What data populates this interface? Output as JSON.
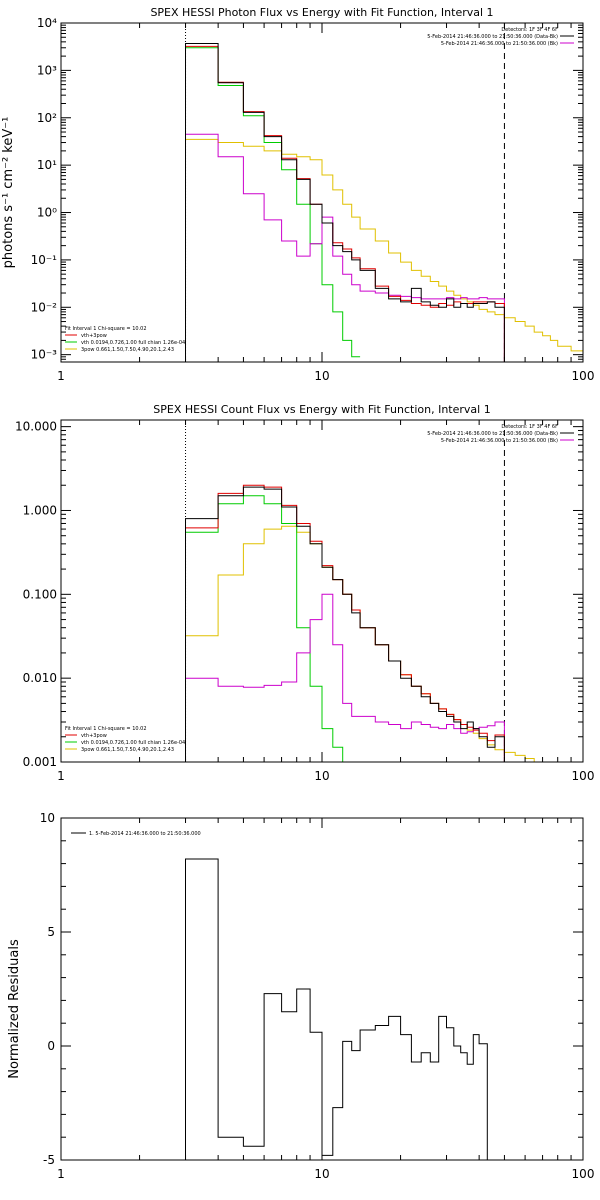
{
  "colors": {
    "data": "#000000",
    "total_fit": "#e00000",
    "thermal": "#00cc00",
    "powerlaw": "#e0c000",
    "background": "#cc00cc",
    "axes": "#000000"
  },
  "chart_data": [
    {
      "type": "line",
      "title": "SPEX HESSI Photon Flux vs Energy with Fit Function, Interval 1",
      "xlabel": "",
      "ylabel": "photons s⁻¹ cm⁻² keV⁻¹",
      "xscale": "log",
      "yscale": "log",
      "xlim": [
        1,
        100
      ],
      "ylim": [
        0.0007,
        10000
      ],
      "x_ticks": [
        "1",
        "10",
        "100"
      ],
      "y_ticks": [
        "10⁻³",
        "10⁻²",
        "10⁻¹",
        "10⁰",
        "10¹",
        "10²",
        "10³",
        "10⁴"
      ],
      "detectors_label": "Detectors: 1F 3F 4F 6F",
      "legend_right": [
        {
          "text": "5-Feb-2014 21:46:36.000 to 21:50:36.000 (Data-Bk)",
          "color": "#000000"
        },
        {
          "text": "5-Feb-2014 21:46:36.000 to 21:50:36.000 (Bk)",
          "color": "#cc00cc"
        }
      ],
      "legend_left": [
        {
          "text": "Fit Interval 1   Chi-square = 10.02",
          "color": "#000000"
        },
        {
          "text": "vth+3pow",
          "color": "#e00000"
        },
        {
          "text": "vth 0.0194,0.726,1.00  full chian 1.26e-04",
          "color": "#00cc00"
        },
        {
          "text": "3pow 0.661,1.50,7.50,4.90,20.1,2.43",
          "color": "#e0c000"
        }
      ],
      "edges": [
        3,
        4,
        5,
        6,
        7,
        8,
        9,
        10,
        11,
        12,
        13,
        14,
        16,
        18,
        20,
        22,
        24,
        26,
        28,
        30,
        32,
        34,
        36,
        38,
        40,
        43,
        46,
        50,
        55,
        60,
        65,
        70,
        75,
        80,
        90,
        100
      ],
      "series": [
        {
          "key": "data",
          "values": [
            3700,
            550,
            130,
            40,
            13,
            5,
            1.5,
            0.6,
            0.2,
            0.15,
            0.1,
            0.06,
            0.025,
            0.015,
            0.013,
            0.025,
            0.013,
            0.011,
            0.01,
            0.015,
            0.01,
            0.012,
            0.01,
            0.012,
            0.012,
            0.013,
            0.01,
            0.015
          ],
          "x_end": 50
        },
        {
          "key": "total_fit",
          "values": [
            3200,
            560,
            135,
            42,
            14,
            5.2,
            1.5,
            0.6,
            0.23,
            0.17,
            0.11,
            0.065,
            0.028,
            0.017,
            0.014,
            0.012,
            0.011,
            0.01,
            0.012,
            0.011,
            0.013,
            0.012,
            0.012,
            0.013,
            0.013,
            0.013,
            0.012,
            0.015
          ],
          "x_end": 50
        },
        {
          "key": "thermal",
          "values": [
            3000,
            480,
            110,
            30,
            8,
            1.5,
            0.22,
            0.03,
            0.008,
            0.002,
            0.0009
          ],
          "x_end": 14,
          "stop_at_bottom": true
        },
        {
          "key": "powerlaw",
          "values": [
            35,
            30,
            25,
            20,
            17,
            15,
            13,
            6.2,
            3.0,
            1.5,
            0.8,
            0.45,
            0.25,
            0.14,
            0.09,
            0.06,
            0.045,
            0.035,
            0.028,
            0.022,
            0.018,
            0.015,
            0.013,
            0.011,
            0.009,
            0.008,
            0.007,
            0.006,
            0.005,
            0.004,
            0.003,
            0.0025,
            0.002,
            0.0015,
            0.0012
          ],
          "x_end": 100
        },
        {
          "key": "background",
          "values": [
            45,
            15,
            2.5,
            0.7,
            0.25,
            0.12,
            0.22,
            0.8,
            0.12,
            0.05,
            0.03,
            0.022,
            0.02,
            0.018,
            0.017,
            0.016,
            0.015,
            0.015,
            0.015,
            0.016,
            0.015,
            0.016,
            0.015,
            0.015,
            0.016,
            0.015,
            0.015,
            0.016
          ],
          "x_end": 50
        }
      ]
    },
    {
      "type": "line",
      "title": "SPEX HESSI Count Flux vs Energy with Fit Function, Interval 1",
      "xlabel": "",
      "ylabel": "",
      "xscale": "log",
      "yscale": "log",
      "xlim": [
        1,
        100
      ],
      "ylim": [
        0.001,
        12
      ],
      "x_ticks": [
        "1",
        "10",
        "100"
      ],
      "y_ticks": [
        "0.001",
        "0.010",
        "0.100",
        "1.000",
        "10.000"
      ],
      "detectors_label": "Detectors: 1F 3F 4F 6F",
      "legend_right": [
        {
          "text": "5-Feb-2014 21:46:36.000 to 21:50:36.000 (Data-Bk)",
          "color": "#000000"
        },
        {
          "text": "5-Feb-2014 21:46:36.000 to 21:50:36.000 (Bk)",
          "color": "#cc00cc"
        }
      ],
      "legend_left": [
        {
          "text": "Fit Interval 1   Chi-square = 10.02",
          "color": "#000000"
        },
        {
          "text": "vth+3pow",
          "color": "#e00000"
        },
        {
          "text": "vth 0.0194,0.726,1.00  full chian 1.26e-04",
          "color": "#00cc00"
        },
        {
          "text": "3pow 0.661,1.50,7.50,4.90,20.1,2.43",
          "color": "#e0c000"
        }
      ],
      "edges": [
        3,
        4,
        5,
        6,
        7,
        8,
        9,
        10,
        11,
        12,
        13,
        14,
        16,
        18,
        20,
        22,
        24,
        26,
        28,
        30,
        32,
        34,
        36,
        38,
        40,
        43,
        46,
        50,
        55,
        60,
        65,
        70
      ],
      "series": [
        {
          "key": "data",
          "values": [
            0.8,
            1.5,
            1.9,
            1.8,
            1.1,
            0.65,
            0.4,
            0.21,
            0.15,
            0.1,
            0.06,
            0.04,
            0.025,
            0.016,
            0.01,
            0.008,
            0.006,
            0.005,
            0.004,
            0.0035,
            0.003,
            0.0025,
            0.003,
            0.0025,
            0.002,
            0.0015,
            0.002
          ],
          "x_end": 50
        },
        {
          "key": "total_fit",
          "values": [
            0.62,
            1.6,
            2.0,
            1.9,
            1.15,
            0.7,
            0.43,
            0.22,
            0.15,
            0.1,
            0.065,
            0.04,
            0.025,
            0.016,
            0.011,
            0.008,
            0.0065,
            0.005,
            0.0043,
            0.0037,
            0.0032,
            0.0028,
            0.0026,
            0.0024,
            0.0022,
            0.0018,
            0.0021
          ],
          "x_end": 50
        },
        {
          "key": "thermal",
          "values": [
            0.55,
            1.2,
            1.5,
            1.2,
            0.7,
            0.04,
            0.008,
            0.0025,
            0.0015,
            0.0009
          ],
          "x_end": 13,
          "stop_at_bottom": true
        },
        {
          "key": "powerlaw",
          "values": [
            0.032,
            0.17,
            0.4,
            0.6,
            0.65,
            0.55,
            0.4,
            0.21,
            0.15,
            0.1,
            0.065,
            0.04,
            0.025,
            0.016,
            0.011,
            0.008,
            0.0065,
            0.005,
            0.0043,
            0.0037,
            0.0032,
            0.0028,
            0.0024,
            0.0022,
            0.0019,
            0.0016,
            0.0014,
            0.0013,
            0.0012,
            0.0011,
            0.0009
          ],
          "x_end": 70,
          "stop_at_bottom": true
        },
        {
          "key": "background",
          "values": [
            0.01,
            0.008,
            0.0078,
            0.0082,
            0.009,
            0.02,
            0.05,
            0.1,
            0.025,
            0.005,
            0.0035,
            0.0035,
            0.003,
            0.0028,
            0.0025,
            0.003,
            0.0028,
            0.0026,
            0.0025,
            0.0028,
            0.0025,
            0.0022,
            0.0023,
            0.0025,
            0.0026,
            0.0027,
            0.003
          ],
          "x_end": 50
        }
      ]
    },
    {
      "type": "line",
      "title": "",
      "xlabel": "",
      "ylabel": "Normalized Residuals",
      "xscale": "log",
      "yscale": "linear",
      "xlim": [
        1,
        100
      ],
      "ylim": [
        -5,
        10
      ],
      "x_ticks": [
        "1",
        "10",
        "100"
      ],
      "y_ticks": [
        "-5",
        "0",
        "5",
        "10"
      ],
      "legend": [
        {
          "text": "1.  5-Feb-2014 21:46:36.000 to 21:50:36.000",
          "color": "#000000"
        }
      ],
      "edges": [
        3,
        4,
        5,
        6,
        7,
        8,
        9,
        10,
        11,
        12,
        13,
        14,
        16,
        18,
        20,
        22,
        24,
        26,
        28,
        30,
        32,
        34,
        36,
        38,
        40,
        43,
        46,
        50
      ],
      "values": [
        8.2,
        -4.0,
        -4.4,
        2.3,
        1.5,
        2.5,
        0.6,
        -4.8,
        -2.7,
        0.2,
        -0.2,
        0.7,
        0.9,
        1.3,
        0.5,
        -0.7,
        -0.3,
        -0.7,
        1.3,
        0.8,
        0.0,
        -0.3,
        -0.8,
        0.5,
        0.1,
        -5.0,
        -5.0
      ]
    }
  ]
}
